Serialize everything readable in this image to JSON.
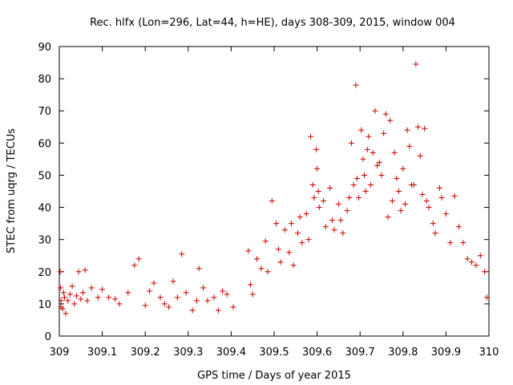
{
  "chart_data": {
    "type": "scatter",
    "title": "Rec. hlfx (Lon=296, Lat=44, h=HE), days 308-309, 2015, window 004",
    "xlabel": "GPS time / Days of year 2015",
    "ylabel": "STEC from uqrg / TECUs",
    "xlim": [
      309,
      310
    ],
    "ylim": [
      0,
      90
    ],
    "xticks": [
      309,
      309.1,
      309.2,
      309.3,
      309.4,
      309.5,
      309.6,
      309.7,
      309.8,
      309.9,
      310
    ],
    "xtick_labels": [
      "309",
      "309.1",
      "309.2",
      "309.3",
      "309.4",
      "309.5",
      "309.6",
      "309.7",
      "309.8",
      "309.9",
      "310"
    ],
    "yticks": [
      0,
      10,
      20,
      30,
      40,
      50,
      60,
      70,
      80,
      90
    ],
    "ytick_labels": [
      "0",
      "10",
      "20",
      "30",
      "40",
      "50",
      "60",
      "70",
      "80",
      "90"
    ],
    "grid": false,
    "marker": "plus",
    "color": "#cc0000",
    "series": [
      {
        "points": [
          [
            309.002,
            20
          ],
          [
            309.003,
            15
          ],
          [
            309.004,
            11
          ],
          [
            309.004,
            9
          ],
          [
            309.008,
            8.5
          ],
          [
            309.01,
            13.5
          ],
          [
            309.012,
            12
          ],
          [
            309.015,
            7
          ],
          [
            309.02,
            11
          ],
          [
            309.025,
            13
          ],
          [
            309.03,
            15.5
          ],
          [
            309.035,
            10
          ],
          [
            309.04,
            12.5
          ],
          [
            309.045,
            20
          ],
          [
            309.05,
            11.5
          ],
          [
            309.055,
            13.5
          ],
          [
            309.06,
            20.5
          ],
          [
            309.065,
            11
          ],
          [
            309.075,
            15
          ],
          [
            309.09,
            12
          ],
          [
            309.1,
            14.5
          ],
          [
            309.115,
            12
          ],
          [
            309.13,
            11.5
          ],
          [
            309.14,
            10
          ],
          [
            309.16,
            13.5
          ],
          [
            309.175,
            22
          ],
          [
            309.185,
            24
          ],
          [
            309.2,
            9.5
          ],
          [
            309.21,
            14
          ],
          [
            309.22,
            16.5
          ],
          [
            309.235,
            12
          ],
          [
            309.245,
            10
          ],
          [
            309.255,
            9
          ],
          [
            309.265,
            17
          ],
          [
            309.275,
            12
          ],
          [
            309.285,
            25.5
          ],
          [
            309.295,
            13.5
          ],
          [
            309.31,
            8
          ],
          [
            309.32,
            11
          ],
          [
            309.325,
            21
          ],
          [
            309.335,
            15
          ],
          [
            309.345,
            11
          ],
          [
            309.36,
            12
          ],
          [
            309.37,
            8
          ],
          [
            309.38,
            14
          ],
          [
            309.39,
            13
          ],
          [
            309.405,
            9
          ],
          [
            309.44,
            26.5
          ],
          [
            309.445,
            16
          ],
          [
            309.45,
            13
          ],
          [
            309.46,
            24
          ],
          [
            309.47,
            21
          ],
          [
            309.48,
            29.5
          ],
          [
            309.485,
            20
          ],
          [
            309.495,
            42
          ],
          [
            309.505,
            35
          ],
          [
            309.51,
            27
          ],
          [
            309.515,
            23
          ],
          [
            309.525,
            33
          ],
          [
            309.535,
            26
          ],
          [
            309.54,
            35
          ],
          [
            309.545,
            22
          ],
          [
            309.555,
            32
          ],
          [
            309.56,
            37
          ],
          [
            309.565,
            29
          ],
          [
            309.575,
            38
          ],
          [
            309.58,
            30
          ],
          [
            309.585,
            62
          ],
          [
            309.59,
            47
          ],
          [
            309.593,
            43
          ],
          [
            309.598,
            58
          ],
          [
            309.6,
            52
          ],
          [
            309.603,
            45
          ],
          [
            309.605,
            40
          ],
          [
            309.615,
            42
          ],
          [
            309.62,
            34
          ],
          [
            309.63,
            46
          ],
          [
            309.635,
            36
          ],
          [
            309.64,
            33
          ],
          [
            309.65,
            41
          ],
          [
            309.655,
            36
          ],
          [
            309.66,
            32
          ],
          [
            309.67,
            39
          ],
          [
            309.675,
            43
          ],
          [
            309.68,
            60
          ],
          [
            309.685,
            47
          ],
          [
            309.69,
            78
          ],
          [
            309.693,
            49
          ],
          [
            309.697,
            43
          ],
          [
            309.703,
            64
          ],
          [
            309.707,
            55
          ],
          [
            309.71,
            50
          ],
          [
            309.713,
            45
          ],
          [
            309.717,
            58
          ],
          [
            309.72,
            62
          ],
          [
            309.725,
            47
          ],
          [
            309.73,
            57
          ],
          [
            309.735,
            70
          ],
          [
            309.74,
            53
          ],
          [
            309.745,
            54
          ],
          [
            309.75,
            50
          ],
          [
            309.755,
            63
          ],
          [
            309.76,
            69
          ],
          [
            309.765,
            37
          ],
          [
            309.77,
            67
          ],
          [
            309.775,
            42
          ],
          [
            309.78,
            57
          ],
          [
            309.785,
            49
          ],
          [
            309.79,
            45
          ],
          [
            309.795,
            39
          ],
          [
            309.8,
            52
          ],
          [
            309.805,
            41
          ],
          [
            309.81,
            64
          ],
          [
            309.815,
            59
          ],
          [
            309.82,
            47
          ],
          [
            309.825,
            47
          ],
          [
            309.83,
            84.5
          ],
          [
            309.835,
            65
          ],
          [
            309.84,
            56
          ],
          [
            309.845,
            44
          ],
          [
            309.85,
            64.5
          ],
          [
            309.855,
            42
          ],
          [
            309.86,
            40
          ],
          [
            309.87,
            35
          ],
          [
            309.875,
            32
          ],
          [
            309.885,
            46
          ],
          [
            309.89,
            43
          ],
          [
            309.9,
            38
          ],
          [
            309.91,
            29
          ],
          [
            309.92,
            43.5
          ],
          [
            309.93,
            34
          ],
          [
            309.94,
            29
          ],
          [
            309.95,
            24
          ],
          [
            309.96,
            23
          ],
          [
            309.97,
            22
          ],
          [
            309.98,
            25
          ],
          [
            309.99,
            20
          ],
          [
            309.995,
            12
          ]
        ]
      }
    ]
  }
}
